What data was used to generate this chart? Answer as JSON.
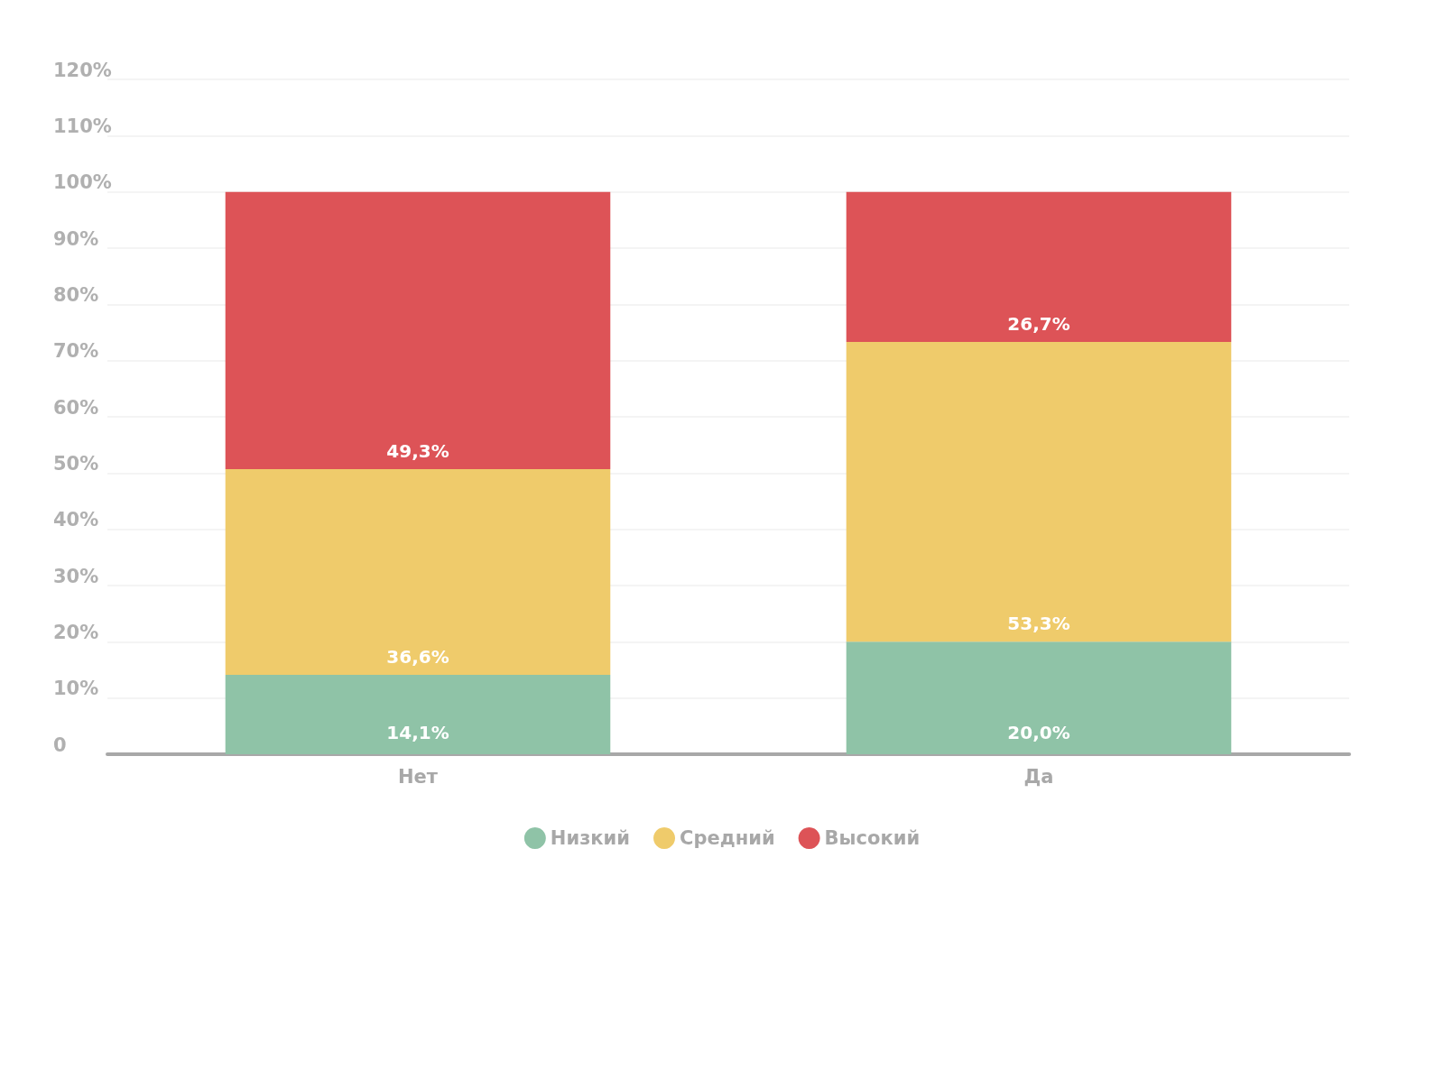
{
  "chart_data": {
    "type": "bar",
    "stacked": true,
    "categories": [
      "Нет",
      "Да"
    ],
    "series": [
      {
        "name": "Низкий",
        "color": "#8fc3a7",
        "values": [
          14.1,
          20.0
        ],
        "value_labels": [
          "14,1%",
          "20,0%"
        ]
      },
      {
        "name": "Средний",
        "color": "#efcb6b",
        "values": [
          36.6,
          53.3
        ],
        "value_labels": [
          "36,6%",
          "53,3%"
        ]
      },
      {
        "name": "Высокий",
        "color": "#dd5357",
        "values": [
          49.3,
          26.7
        ],
        "value_labels": [
          "49,3%",
          "26,7%"
        ]
      }
    ],
    "ylim": [
      0,
      120
    ],
    "yticks": [
      0,
      {
        "value": 10,
        "label": "10%"
      },
      {
        "value": 20,
        "label": "20%"
      },
      {
        "value": 30,
        "label": "30%"
      },
      {
        "value": 40,
        "label": "40%"
      },
      {
        "value": 50,
        "label": "50%"
      },
      {
        "value": 60,
        "label": "60%"
      },
      {
        "value": 70,
        "label": "70%"
      },
      {
        "value": 80,
        "label": "80%"
      },
      {
        "value": 90,
        "label": "90%"
      },
      {
        "value": 100,
        "label": "100%"
      },
      {
        "value": 110,
        "label": "110%"
      },
      {
        "value": 120,
        "label": "120%"
      }
    ],
    "grid": "y",
    "legend": "bottom"
  }
}
